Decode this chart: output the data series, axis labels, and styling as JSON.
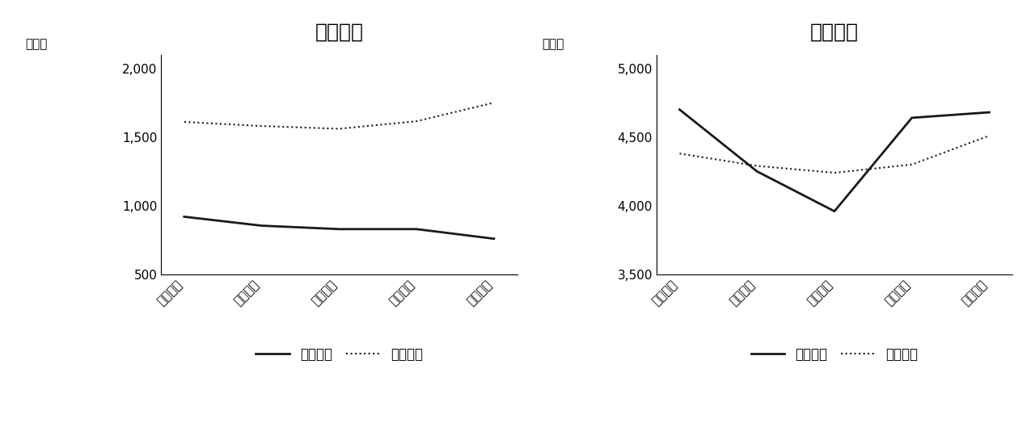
{
  "left_title": "自然動態",
  "right_title": "社会動態",
  "x_labels": [
    "令和元年",
    "令和２年",
    "令和３年",
    "令和４年",
    "令和５年"
  ],
  "left_y_label": "（人）",
  "right_y_label": "（人）",
  "left_ylim": [
    500,
    2100
  ],
  "right_ylim": [
    3500,
    5100
  ],
  "left_yticks": [
    500,
    1000,
    1500,
    2000
  ],
  "right_yticks": [
    3500,
    4000,
    4500,
    5000
  ],
  "births": [
    920,
    855,
    830,
    830,
    760
  ],
  "deaths_approx": [
    1610,
    1580,
    1560,
    1615,
    1750
  ],
  "move_in": [
    4700,
    4250,
    3960,
    4640,
    4680
  ],
  "move_out": [
    4380,
    4290,
    4240,
    4300,
    4510
  ],
  "line_color": "#1a1a1a",
  "background_color": "#ffffff",
  "title_fontsize": 18,
  "label_fontsize": 11,
  "tick_fontsize": 11,
  "legend_fontsize": 12
}
